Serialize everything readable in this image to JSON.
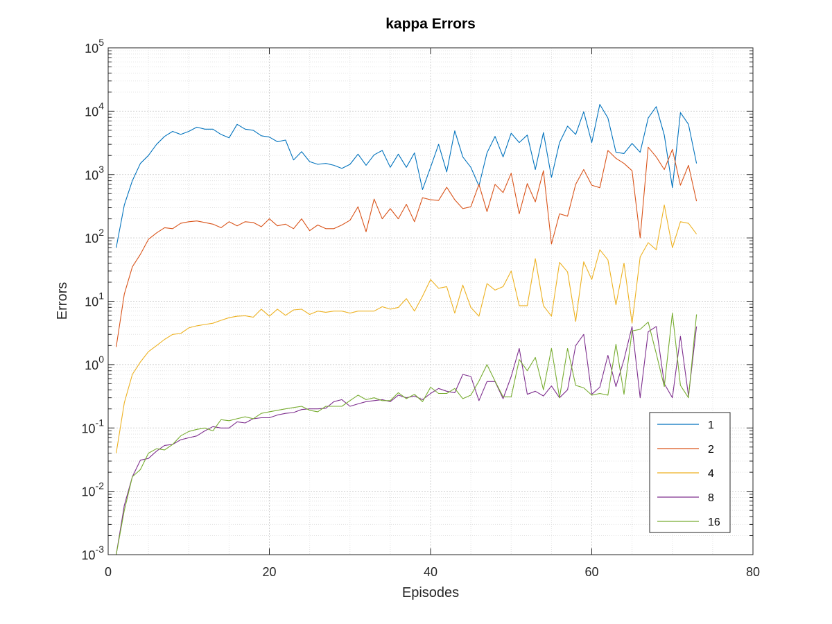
{
  "chart_data": {
    "type": "line",
    "title": "kappa Errors",
    "xlabel": "Episodes",
    "ylabel": "Errors",
    "xlim": [
      0,
      80
    ],
    "ylim": [
      0.001,
      100000
    ],
    "yscale": "log",
    "grid": true,
    "legend_position": "bottom-right",
    "x_ticks": [
      "0",
      "20",
      "40",
      "60",
      "80"
    ],
    "y_ticks": [
      {
        "base": "10",
        "exp": "-3"
      },
      {
        "base": "10",
        "exp": "-2"
      },
      {
        "base": "10",
        "exp": "-1"
      },
      {
        "base": "10",
        "exp": "0"
      },
      {
        "base": "10",
        "exp": "1"
      },
      {
        "base": "10",
        "exp": "2"
      },
      {
        "base": "10",
        "exp": "3"
      },
      {
        "base": "10",
        "exp": "4"
      },
      {
        "base": "10",
        "exp": "5"
      }
    ],
    "series": [
      {
        "name": "1",
        "color": "#0072BD",
        "values": [
          70,
          330,
          800,
          1500,
          2000,
          3000,
          4000,
          4800,
          4300,
          4800,
          5600,
          5200,
          5200,
          4300,
          3800,
          6200,
          5200,
          5000,
          4100,
          3900,
          3300,
          3500,
          1700,
          2300,
          1600,
          1450,
          1500,
          1400,
          1250,
          1450,
          2100,
          1400,
          2050,
          2400,
          1300,
          2100,
          1300,
          2200,
          580,
          1300,
          3000,
          1100,
          4900,
          1900,
          1300,
          660,
          2200,
          4000,
          1900,
          4500,
          3200,
          4200,
          1200,
          4600,
          900,
          3200,
          5800,
          4300,
          9800,
          3200,
          12800,
          7800,
          2250,
          2150,
          3100,
          2250,
          7800,
          11800,
          4200,
          620,
          9500,
          6200,
          1500
        ]
      },
      {
        "name": "2",
        "color": "#D95319",
        "values": [
          1.9,
          13,
          35,
          55,
          95,
          120,
          145,
          140,
          170,
          180,
          185,
          175,
          165,
          145,
          180,
          155,
          180,
          175,
          150,
          200,
          155,
          165,
          140,
          200,
          130,
          160,
          140,
          140,
          160,
          190,
          310,
          125,
          410,
          200,
          290,
          200,
          340,
          180,
          430,
          400,
          390,
          630,
          400,
          290,
          310,
          700,
          260,
          700,
          520,
          1050,
          240,
          720,
          370,
          1150,
          80,
          240,
          220,
          700,
          1200,
          680,
          620,
          2400,
          1800,
          1500,
          1150,
          100,
          2700,
          1900,
          1200,
          2500,
          680,
          1400,
          380
        ]
      },
      {
        "name": "4",
        "color": "#EDB120",
        "values": [
          0.04,
          0.25,
          0.7,
          1.1,
          1.6,
          2.0,
          2.5,
          3.0,
          3.1,
          3.8,
          4.1,
          4.3,
          4.5,
          5.0,
          5.5,
          5.8,
          5.9,
          5.6,
          7.5,
          5.8,
          7.5,
          6.0,
          7.3,
          7.5,
          6.2,
          7.0,
          6.7,
          7.0,
          7.0,
          6.5,
          7.0,
          7.0,
          7.0,
          8.2,
          7.5,
          8.0,
          11,
          7.0,
          12,
          22,
          16,
          17,
          6.5,
          18,
          8.0,
          5.8,
          19,
          15,
          17,
          30,
          8.5,
          8.5,
          47,
          8.5,
          5.8,
          41,
          29,
          4.8,
          42,
          22,
          65,
          45,
          8.8,
          40,
          4.5,
          50,
          84,
          65,
          330,
          70,
          180,
          170,
          115
        ]
      },
      {
        "name": "8",
        "color": "#7E2F8E",
        "values": [
          0.001,
          0.006,
          0.017,
          0.031,
          0.033,
          0.043,
          0.053,
          0.055,
          0.065,
          0.07,
          0.075,
          0.09,
          0.105,
          0.1,
          0.1,
          0.125,
          0.12,
          0.14,
          0.145,
          0.145,
          0.16,
          0.17,
          0.175,
          0.195,
          0.2,
          0.2,
          0.205,
          0.26,
          0.28,
          0.22,
          0.24,
          0.26,
          0.27,
          0.28,
          0.26,
          0.33,
          0.3,
          0.32,
          0.28,
          0.35,
          0.42,
          0.38,
          0.36,
          0.7,
          0.65,
          0.27,
          0.54,
          0.54,
          0.29,
          0.65,
          1.8,
          0.34,
          0.38,
          0.32,
          0.46,
          0.3,
          0.4,
          2.0,
          3.0,
          0.34,
          0.44,
          1.4,
          0.45,
          1.2,
          4.0,
          0.3,
          3.3,
          4.0,
          0.5,
          0.3,
          2.8,
          0.32,
          4.0
        ]
      },
      {
        "name": "16",
        "color": "#77AC30",
        "values": [
          0.001,
          0.005,
          0.017,
          0.022,
          0.04,
          0.047,
          0.045,
          0.055,
          0.075,
          0.088,
          0.095,
          0.1,
          0.09,
          0.135,
          0.13,
          0.14,
          0.15,
          0.14,
          0.17,
          0.18,
          0.19,
          0.2,
          0.21,
          0.22,
          0.19,
          0.18,
          0.22,
          0.22,
          0.22,
          0.27,
          0.33,
          0.28,
          0.3,
          0.27,
          0.27,
          0.36,
          0.29,
          0.34,
          0.26,
          0.44,
          0.35,
          0.35,
          0.42,
          0.29,
          0.33,
          0.55,
          1.0,
          0.55,
          0.31,
          0.31,
          1.2,
          0.8,
          1.3,
          0.4,
          1.8,
          0.3,
          1.8,
          0.47,
          0.43,
          0.33,
          0.35,
          0.33,
          2.1,
          0.34,
          3.4,
          3.6,
          4.7,
          1.5,
          0.45,
          6.5,
          0.47,
          0.3,
          6.2
        ]
      }
    ]
  }
}
